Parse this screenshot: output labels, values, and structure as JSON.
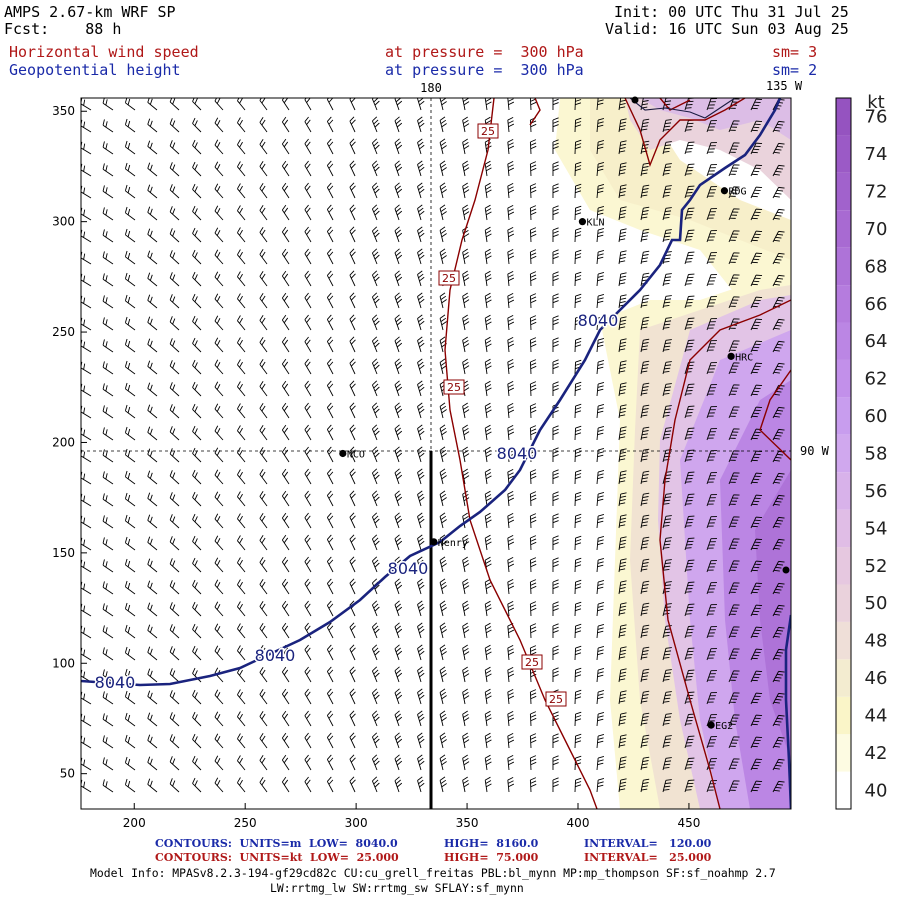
{
  "header": {
    "model": "AMPS 2.67-km WRF SP",
    "forecast": "Fcst:    88 h",
    "init": "Init: 00 UTC Thu 31 Jul 25",
    "valid": "Valid: 16 UTC Sun 03 Aug 25",
    "field1_name": "Horizontal wind speed",
    "field1_level": "at pressure =  300 hPa",
    "field1_sm": "sm= 3",
    "field2_name": "Geopotential height",
    "field2_level": "at pressure =  300 hPa",
    "field2_sm": "sm= 2"
  },
  "colors": {
    "red_text": "#b01818",
    "blue_text": "#1a2aa8",
    "height_contour": "#1a237e",
    "speed_contour": "#8b0000"
  },
  "chart_data": {
    "type": "heatmap",
    "x_ticks": [
      "200",
      "250",
      "300",
      "350",
      "400",
      "450"
    ],
    "y_ticks": [
      "50",
      "100",
      "150",
      "200",
      "250",
      "300",
      "350"
    ],
    "xlim": [
      176,
      496
    ],
    "ylim": [
      34,
      356
    ],
    "lon_labels": {
      "top_180": "180",
      "top_135w": "135 W",
      "right_90w": "90 W"
    },
    "colorbar": {
      "unit": "kt",
      "levels": [
        "40",
        "42",
        "44",
        "46",
        "48",
        "50",
        "52",
        "54",
        "56",
        "58",
        "60",
        "62",
        "64",
        "66",
        "68",
        "70",
        "72",
        "74",
        "76"
      ],
      "colors": [
        "#ffffff",
        "#fdfbe2",
        "#faf5c8",
        "#f3ecd0",
        "#efdfd8",
        "#ead2dc",
        "#e6c8e0",
        "#e0bde6",
        "#d8b2ea",
        "#d0a8ee",
        "#c89dee",
        "#c290ea",
        "#bb86e4",
        "#b57cde",
        "#ae73d8",
        "#a86ad2",
        "#a162cc",
        "#9b5ac6",
        "#9553c0"
      ]
    },
    "height_contour_label": "8040",
    "speed_contour_label": "25",
    "stations": [
      {
        "name": "NCO",
        "x": 294,
        "y": 195
      },
      {
        "name": "Henry",
        "x": 335,
        "y": 155
      },
      {
        "name": "KLN",
        "x": 402,
        "y": 300
      },
      {
        "name": "RDG",
        "x": 466,
        "y": 314
      },
      {
        "name": "HRC",
        "x": 469,
        "y": 239
      },
      {
        "name": "EG2",
        "x": 460,
        "y": 72
      }
    ]
  },
  "footer": {
    "line1_label": "CONTOURS:  UNITS=m  LOW=  8040.0",
    "line1_high": "HIGH=  8160.0",
    "line1_interval": "INTERVAL=   120.00",
    "line2_label": "CONTOURS:  UNITS=kt  LOW=  25.000",
    "line2_high": "HIGH=  75.000",
    "line2_interval": "INTERVAL=   25.000",
    "model_info": "Model Info: MPASv8.2.3-194-gf29cd82c CU:cu_grell_freitas PBL:bl_mynn MP:mp_thompson SF:sf_noahmp 2.7",
    "model_info2": "LW:rrtmg_lw SW:rrtmg_sw SFLAY:sf_mynn"
  }
}
